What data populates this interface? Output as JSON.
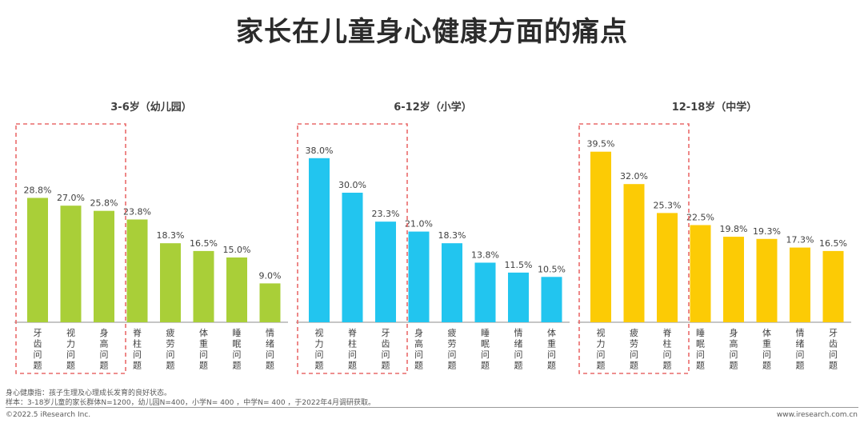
{
  "title": "家长在儿童身心健康方面的痛点",
  "chart_data": [
    {
      "type": "bar",
      "title": "3-6岁（幼儿园）",
      "color": "#a9cf38",
      "categories": [
        "牙齿问题",
        "视力问题",
        "身高问题",
        "脊柱问题",
        "疲劳问题",
        "体重问题",
        "睡眠问题",
        "情绪问题"
      ],
      "values": [
        28.8,
        27.0,
        25.8,
        23.8,
        18.3,
        16.5,
        15.0,
        9.0
      ],
      "labels": [
        "28.8%",
        "27.0%",
        "25.8%",
        "23.8%",
        "18.3%",
        "16.5%",
        "15.0%",
        "9.0%"
      ],
      "highlight_count": 3
    },
    {
      "type": "bar",
      "title": "6-12岁（小学）",
      "color": "#22c5ef",
      "categories": [
        "视力问题",
        "脊柱问题",
        "牙齿问题",
        "身高问题",
        "疲劳问题",
        "睡眠问题",
        "情绪问题",
        "体重问题"
      ],
      "values": [
        38.0,
        30.0,
        23.3,
        21.0,
        18.3,
        13.8,
        11.5,
        10.5
      ],
      "labels": [
        "38.0%",
        "30.0%",
        "23.3%",
        "21.0%",
        "18.3%",
        "13.8%",
        "11.5%",
        "10.5%"
      ],
      "highlight_count": 3
    },
    {
      "type": "bar",
      "title": "12-18岁（中学）",
      "color": "#fccb05",
      "categories": [
        "视力问题",
        "疲劳问题",
        "脊柱问题",
        "睡眠问题",
        "身高问题",
        "体重问题",
        "情绪问题",
        "牙齿问题"
      ],
      "values": [
        39.5,
        32.0,
        25.3,
        22.5,
        19.8,
        19.3,
        17.3,
        16.5
      ],
      "labels": [
        "39.5%",
        "32.0%",
        "25.3%",
        "22.5%",
        "19.8%",
        "19.3%",
        "17.3%",
        "16.5%"
      ],
      "highlight_count": 3
    }
  ],
  "notes": {
    "line1": "身心健康指：孩子生理及心理成长发育的良好状态。",
    "line2": "样本：3-18岁儿童的家长群体N=1200，幼儿园N=400，小学N= 400 ，中学N= 400 ，于2022年4月调研获取。"
  },
  "footer": {
    "copyright": "©2022.5 iResearch Inc.",
    "website": "www.iresearch.com.cn"
  }
}
